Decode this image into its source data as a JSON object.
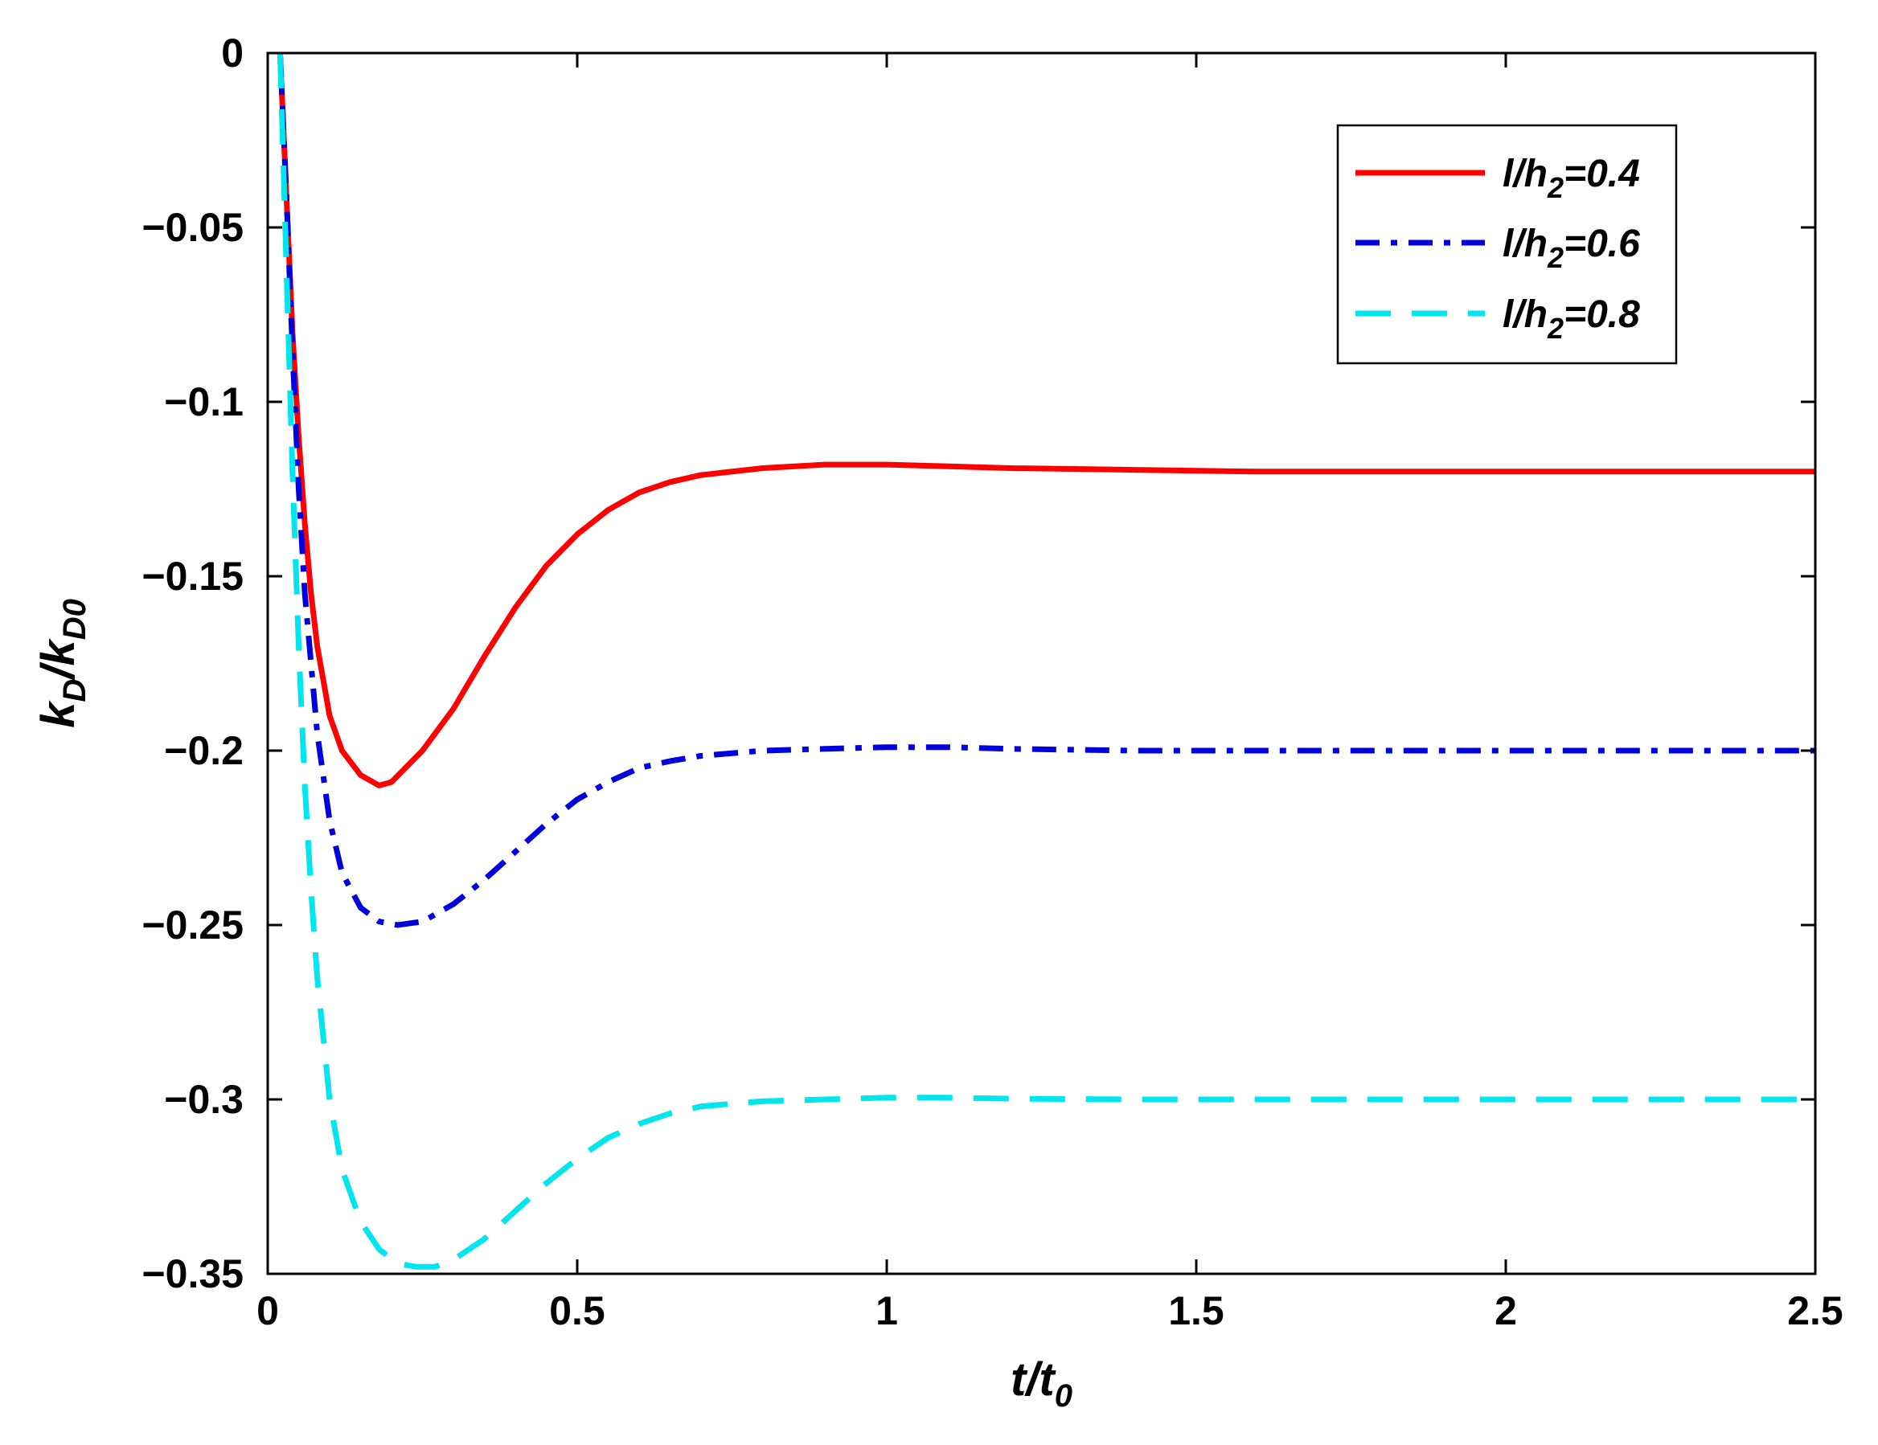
{
  "chart_data": {
    "type": "line",
    "xlabel": {
      "base": "t/t",
      "sub": "0"
    },
    "ylabel": {
      "k1": "k",
      "sub1": "D",
      "slash": "/",
      "k2": "k",
      "sub2": "D0"
    },
    "xlim": [
      0,
      2.5
    ],
    "ylim": [
      -0.35,
      0
    ],
    "xticks": [
      {
        "value": 0,
        "label": "0"
      },
      {
        "value": 0.5,
        "label": "0.5"
      },
      {
        "value": 1,
        "label": "1"
      },
      {
        "value": 1.5,
        "label": "1.5"
      },
      {
        "value": 2,
        "label": "2"
      },
      {
        "value": 2.5,
        "label": "2.5"
      }
    ],
    "yticks": [
      {
        "value": 0,
        "label": "0"
      },
      {
        "value": -0.05,
        "label": "−0.05"
      },
      {
        "value": -0.1,
        "label": "−0.1"
      },
      {
        "value": -0.15,
        "label": "−0.15"
      },
      {
        "value": -0.2,
        "label": "−0.2"
      },
      {
        "value": -0.25,
        "label": "−0.25"
      },
      {
        "value": -0.3,
        "label": "−0.3"
      },
      {
        "value": -0.35,
        "label": "−0.35"
      }
    ],
    "grid": false,
    "legend_position": "top-right",
    "series": [
      {
        "name": "l/h2=0.4",
        "legend": {
          "base": "l/h",
          "sub": "2",
          "rest": "=0.4"
        },
        "color": "#ff0000",
        "style": "solid",
        "x": [
          0.02,
          0.03,
          0.04,
          0.05,
          0.06,
          0.07,
          0.08,
          0.1,
          0.12,
          0.15,
          0.18,
          0.2,
          0.25,
          0.3,
          0.35,
          0.4,
          0.45,
          0.5,
          0.55,
          0.6,
          0.65,
          0.7,
          0.8,
          0.9,
          1.0,
          1.1,
          1.2,
          1.4,
          1.6,
          1.8,
          2.0,
          2.2,
          2.4,
          2.5
        ],
        "y": [
          0.0,
          -0.04,
          -0.08,
          -0.11,
          -0.135,
          -0.155,
          -0.17,
          -0.19,
          -0.2,
          -0.207,
          -0.21,
          -0.209,
          -0.2,
          -0.188,
          -0.173,
          -0.159,
          -0.147,
          -0.138,
          -0.131,
          -0.126,
          -0.123,
          -0.121,
          -0.119,
          -0.118,
          -0.118,
          -0.1185,
          -0.119,
          -0.1195,
          -0.12,
          -0.12,
          -0.12,
          -0.12,
          -0.12,
          -0.12
        ]
      },
      {
        "name": "l/h2=0.6",
        "legend": {
          "base": "l/h",
          "sub": "2",
          "rest": "=0.6"
        },
        "color": "#0000dd",
        "style": "dashdot",
        "x": [
          0.02,
          0.03,
          0.04,
          0.05,
          0.06,
          0.08,
          0.1,
          0.12,
          0.15,
          0.18,
          0.21,
          0.25,
          0.3,
          0.35,
          0.4,
          0.45,
          0.5,
          0.55,
          0.6,
          0.65,
          0.7,
          0.8,
          0.9,
          1.0,
          1.1,
          1.2,
          1.4,
          1.6,
          1.8,
          2.0,
          2.2,
          2.5
        ],
        "y": [
          0.0,
          -0.04,
          -0.085,
          -0.125,
          -0.155,
          -0.195,
          -0.22,
          -0.235,
          -0.245,
          -0.249,
          -0.25,
          -0.249,
          -0.244,
          -0.237,
          -0.229,
          -0.221,
          -0.214,
          -0.209,
          -0.205,
          -0.203,
          -0.2015,
          -0.2,
          -0.1995,
          -0.199,
          -0.199,
          -0.1995,
          -0.2,
          -0.2,
          -0.2,
          -0.2,
          -0.2,
          -0.2
        ]
      },
      {
        "name": "l/h2=0.8",
        "legend": {
          "base": "l/h",
          "sub": "2",
          "rest": "=0.8"
        },
        "color": "#00e5ee",
        "style": "dashed",
        "x": [
          0.02,
          0.03,
          0.04,
          0.05,
          0.06,
          0.07,
          0.08,
          0.1,
          0.12,
          0.15,
          0.18,
          0.21,
          0.24,
          0.27,
          0.3,
          0.35,
          0.4,
          0.45,
          0.5,
          0.55,
          0.6,
          0.65,
          0.7,
          0.8,
          0.9,
          1.0,
          1.1,
          1.2,
          1.4,
          1.6,
          1.8,
          2.0,
          2.2,
          2.5
        ],
        "y": [
          0.0,
          -0.06,
          -0.12,
          -0.17,
          -0.21,
          -0.24,
          -0.265,
          -0.3,
          -0.32,
          -0.335,
          -0.343,
          -0.347,
          -0.348,
          -0.348,
          -0.346,
          -0.34,
          -0.332,
          -0.324,
          -0.317,
          -0.311,
          -0.307,
          -0.304,
          -0.302,
          -0.3005,
          -0.3,
          -0.2995,
          -0.2995,
          -0.2998,
          -0.3,
          -0.3,
          -0.3,
          -0.3,
          -0.3,
          -0.3
        ]
      }
    ]
  }
}
